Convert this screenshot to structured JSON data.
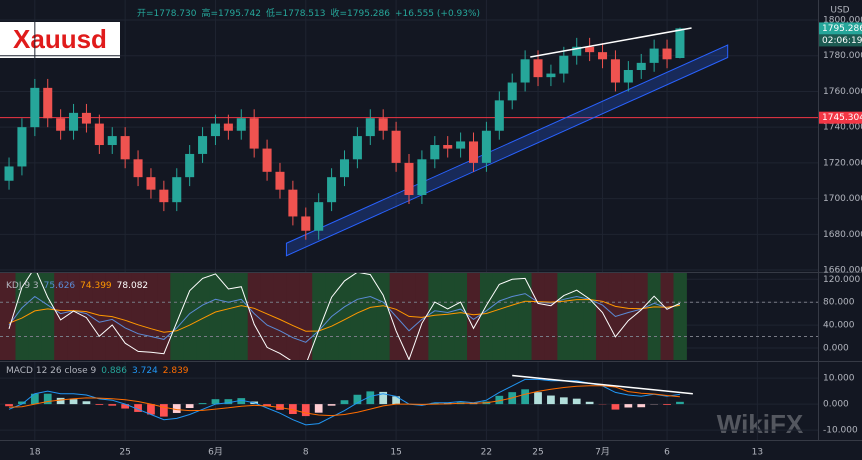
{
  "header": {
    "ohlc": [
      "开=1778.730",
      "高=1795.742",
      "低=1778.513",
      "收=1795.286",
      "+16.555 (+0.93%)"
    ],
    "symbol_badge": "Xauusd",
    "watermark": "WikiFX"
  },
  "chart_data": [
    {
      "type": "candlestick",
      "axis_title": "USD",
      "countdown": "02:06:19",
      "x": [
        -2,
        -1,
        0,
        1,
        2,
        3,
        4,
        5,
        6,
        7,
        8,
        9,
        10,
        11,
        12,
        13,
        14,
        15,
        16,
        17,
        18,
        19,
        20,
        21,
        22,
        23,
        24,
        25,
        26,
        27,
        28,
        29,
        30,
        31,
        32,
        33,
        34,
        35,
        36,
        37,
        38,
        39,
        40,
        41,
        42,
        43,
        44,
        45,
        46,
        47,
        48,
        49,
        50
      ],
      "open": [
        1710,
        1718,
        1740,
        1762,
        1745,
        1738,
        1748,
        1742,
        1730,
        1735,
        1722,
        1712,
        1705,
        1698,
        1712,
        1725,
        1735,
        1742,
        1738,
        1745,
        1728,
        1715,
        1705,
        1690,
        1682,
        1698,
        1712,
        1722,
        1735,
        1745,
        1738,
        1720,
        1702,
        1722,
        1730,
        1728,
        1732,
        1720,
        1738,
        1755,
        1765,
        1778,
        1768,
        1770,
        1780,
        1785,
        1782,
        1778,
        1765,
        1772,
        1776,
        1784,
        1778.73
      ],
      "high": [
        1723,
        1745,
        1767,
        1767,
        1750,
        1753,
        1753,
        1747,
        1740,
        1740,
        1727,
        1717,
        1710,
        1717,
        1730,
        1740,
        1747,
        1747,
        1750,
        1750,
        1733,
        1720,
        1710,
        1695,
        1703,
        1717,
        1727,
        1740,
        1750,
        1750,
        1743,
        1725,
        1727,
        1735,
        1735,
        1737,
        1737,
        1743,
        1760,
        1770,
        1783,
        1783,
        1775,
        1785,
        1790,
        1790,
        1787,
        1783,
        1777,
        1781,
        1789,
        1789,
        1795.742
      ],
      "low": [
        1705,
        1713,
        1735,
        1740,
        1733,
        1733,
        1737,
        1725,
        1725,
        1717,
        1707,
        1700,
        1693,
        1693,
        1707,
        1720,
        1730,
        1733,
        1733,
        1723,
        1710,
        1700,
        1685,
        1677,
        1677,
        1693,
        1707,
        1717,
        1730,
        1733,
        1715,
        1697,
        1697,
        1717,
        1723,
        1723,
        1715,
        1715,
        1733,
        1750,
        1760,
        1763,
        1763,
        1765,
        1775,
        1777,
        1773,
        1760,
        1760,
        1767,
        1771,
        1773,
        1778.513
      ],
      "close": [
        1718,
        1740,
        1762,
        1745,
        1738,
        1748,
        1742,
        1730,
        1735,
        1722,
        1712,
        1705,
        1698,
        1712,
        1725,
        1735,
        1742,
        1738,
        1745,
        1728,
        1715,
        1705,
        1690,
        1682,
        1698,
        1712,
        1722,
        1735,
        1745,
        1738,
        1720,
        1702,
        1722,
        1730,
        1728,
        1732,
        1720,
        1738,
        1755,
        1765,
        1778,
        1768,
        1770,
        1780,
        1785,
        1782,
        1778,
        1765,
        1772,
        1776,
        1784,
        1778,
        1795.286
      ],
      "colors": {
        "up": "#26a69a",
        "down": "#ef5350"
      },
      "xlim": [
        -2.7,
        60.7
      ],
      "xticks": [
        {
          "value": 0,
          "label": "18"
        },
        {
          "value": 7,
          "label": "25"
        },
        {
          "value": 14,
          "label": "6月"
        },
        {
          "value": 21,
          "label": "8"
        },
        {
          "value": 28,
          "label": "15"
        },
        {
          "value": 35,
          "label": "22"
        },
        {
          "value": 39,
          "label": "25"
        },
        {
          "value": 44,
          "label": "7月"
        },
        {
          "value": 49,
          "label": "6"
        },
        {
          "value": 56,
          "label": "13"
        }
      ],
      "ylim": [
        1658.9,
        1811.2
      ],
      "yticks": [
        {
          "value": 1660,
          "label": "1660.000"
        },
        {
          "value": 1680,
          "label": "1680.000"
        },
        {
          "value": 1700,
          "label": "1700.000"
        },
        {
          "value": 1720,
          "label": "1720.000"
        },
        {
          "value": 1740,
          "label": "1740.000"
        },
        {
          "value": 1760,
          "label": "1760.000"
        },
        {
          "value": 1780,
          "label": "1780.000"
        },
        {
          "value": 1800,
          "label": "1800.000"
        }
      ],
      "hlines": [
        {
          "value": 1745.304,
          "color": "#f23645"
        }
      ],
      "channel": {
        "x": [
          19.5,
          53.7
        ],
        "lower": [
          1668,
          1779
        ],
        "upper": [
          1675,
          1786
        ],
        "color": "#2962ff"
      },
      "trendlines": [
        {
          "x": [
            38.4,
            50.9
          ],
          "y": [
            1779.3,
            1795.5
          ],
          "color": "#ffffff"
        }
      ]
    },
    {
      "type": "line",
      "title": "KDJ 9 3",
      "series": [
        {
          "color": "#5b8bd6",
          "values": [
            40,
            70,
            90,
            75,
            60,
            65,
            60,
            45,
            50,
            35,
            25,
            20,
            15,
            35,
            60,
            75,
            85,
            80,
            85,
            60,
            40,
            30,
            18,
            10,
            30,
            55,
            72,
            85,
            90,
            80,
            55,
            30,
            50,
            65,
            62,
            68,
            50,
            65,
            82,
            90,
            95,
            80,
            78,
            85,
            90,
            85,
            75,
            55,
            62,
            68,
            78,
            70,
            75.626
          ]
        },
        {
          "color": "#ff9800",
          "values": [
            43.3,
            52.2,
            64.8,
            68.2,
            65.5,
            65.3,
            63.5,
            57.3,
            54.9,
            48.3,
            40.5,
            33.7,
            27.5,
            30.0,
            40.0,
            51.7,
            62.8,
            68.5,
            74.0,
            69.3,
            59.5,
            49.7,
            39.1,
            29.4,
            29.6,
            38.1,
            49.4,
            61.3,
            70.9,
            73.9,
            67.6,
            55.1,
            53.4,
            57.3,
            58.9,
            61.9,
            57.9,
            60.3,
            67.5,
            75.0,
            81.7,
            81.1,
            80.1,
            81.7,
            84.5,
            84.7,
            81.5,
            72.7,
            69.1,
            68.7,
            71.8,
            71.2,
            74.399
          ]
        },
        {
          "color": "#ffffff",
          "values": [
            33.4,
            105.6,
            140.4,
            88.6,
            49,
            64.4,
            53,
            20.4,
            40.2,
            8.4,
            -6,
            -7.4,
            -10,
            45,
            100,
            121.6,
            129.4,
            103,
            107,
            41.4,
            1,
            -9.4,
            -24.2,
            -28.8,
            30.8,
            88.8,
            117.2,
            132.4,
            128.2,
            92.2,
            29.8,
            -20.2,
            43.2,
            80.4,
            68.2,
            80.2,
            34.2,
            74.4,
            111,
            120,
            121.6,
            77.8,
            73.8,
            91.6,
            101,
            85.6,
            62,
            19.6,
            47.8,
            66.6,
            90.4,
            67.6,
            78.082
          ]
        }
      ],
      "bands": {
        "up": "#1d4a2c",
        "down": "#4b1f27"
      },
      "levels": [
        20,
        80
      ],
      "ylim": [
        -21,
        131
      ],
      "yticks": [
        {
          "value": 0,
          "label": "0.000"
        },
        {
          "value": 40,
          "label": "40.000"
        },
        {
          "value": 80,
          "label": "80.000"
        },
        {
          "value": 120,
          "label": "120.000"
        }
      ]
    },
    {
      "type": "combo",
      "title": "MACD 12 26 close 9",
      "series": [
        {
          "kind": "bar",
          "color": "#26a69a",
          "colors": {
            "pos_up": "#26a69a",
            "pos_down": "#b2dfdb",
            "neg_down": "#ff5252",
            "neg_up": "#ffcdd2"
          },
          "values": [
            -0.8,
            1.0,
            4.0,
            4.0,
            2.4,
            1.9,
            1.1,
            -0.3,
            -0.6,
            -1.7,
            -3.0,
            -4.0,
            -4.8,
            -3.4,
            -1.5,
            0.4,
            1.9,
            1.9,
            2.3,
            1.0,
            -0.8,
            -2.2,
            -3.8,
            -4.6,
            -3.3,
            -0.6,
            1.5,
            3.6,
            4.9,
            4.7,
            3.0,
            0.0,
            -0.4,
            0.5,
            0.4,
            0.7,
            0.2,
            1.0,
            3.2,
            4.6,
            5.7,
            4.6,
            3.3,
            2.6,
            2.1,
            0.9,
            -0.1,
            -2.1,
            -1.3,
            -1.2,
            -0.1,
            -0.3,
            0.886
          ]
        },
        {
          "kind": "line",
          "color": "#2196f3",
          "values": [
            -2,
            0,
            4,
            5,
            4,
            4,
            3.5,
            2,
            1.5,
            0,
            -2,
            -4,
            -6,
            -5.5,
            -4,
            -2,
            0,
            0.5,
            1.5,
            0.5,
            -1.5,
            -3.5,
            -6,
            -8,
            -7.5,
            -5,
            -2.5,
            0.5,
            3,
            4,
            3,
            0,
            -0.5,
            0.5,
            0.5,
            1,
            0.5,
            1.5,
            4.5,
            7,
            9.5,
            9.5,
            9,
            9,
            9,
            8,
            7,
            4.5,
            3.5,
            3,
            3.8,
            3,
            3.724
          ]
        },
        {
          "kind": "line",
          "color": "#ff6d00",
          "values": [
            -1.2,
            -1.0,
            0,
            1.0,
            1.6,
            2.1,
            2.4,
            2.3,
            2.1,
            1.7,
            1.0,
            0.0,
            -1.2,
            -2.1,
            -2.5,
            -2.4,
            -1.9,
            -1.4,
            -0.8,
            -0.5,
            -0.7,
            -1.3,
            -2.2,
            -3.4,
            -4.2,
            -4.4,
            -4.0,
            -3.1,
            -1.9,
            -0.7,
            0.0,
            0.0,
            -0.1,
            0.0,
            0.1,
            0.3,
            0.3,
            0.5,
            1.3,
            2.4,
            3.8,
            4.9,
            5.7,
            6.4,
            6.9,
            7.1,
            7.1,
            6.6,
            4.8,
            4.2,
            3.9,
            3.3,
            2.839
          ]
        }
      ],
      "ylim": [
        -13.8,
        16.2
      ],
      "yticks": [
        {
          "value": -10,
          "label": "-10.000"
        },
        {
          "value": 0,
          "label": "0.000"
        },
        {
          "value": 10,
          "label": "10.000"
        }
      ],
      "trendlines": [
        {
          "x": [
            37,
            51
          ],
          "y": [
            11,
            4
          ],
          "color": "#ffffff"
        }
      ]
    }
  ]
}
